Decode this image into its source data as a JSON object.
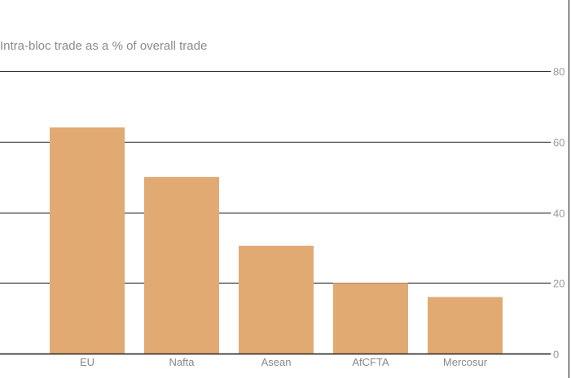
{
  "colors": {
    "bar": "#e1aa73",
    "grid": "#111111",
    "text": "#8a8a8a"
  },
  "chart_data": {
    "type": "bar",
    "title": "Intra-bloc trade as a % of overall trade",
    "categories": [
      "EU",
      "Nafta",
      "Asean",
      "AfCFTA",
      "Mercosur"
    ],
    "values": [
      64,
      50,
      30.5,
      20,
      16
    ],
    "ylim": [
      0,
      80
    ],
    "yticks": [
      0,
      20,
      40,
      60,
      80
    ],
    "y_axis_position": "right",
    "grid": true,
    "xlabel": "",
    "ylabel": ""
  }
}
